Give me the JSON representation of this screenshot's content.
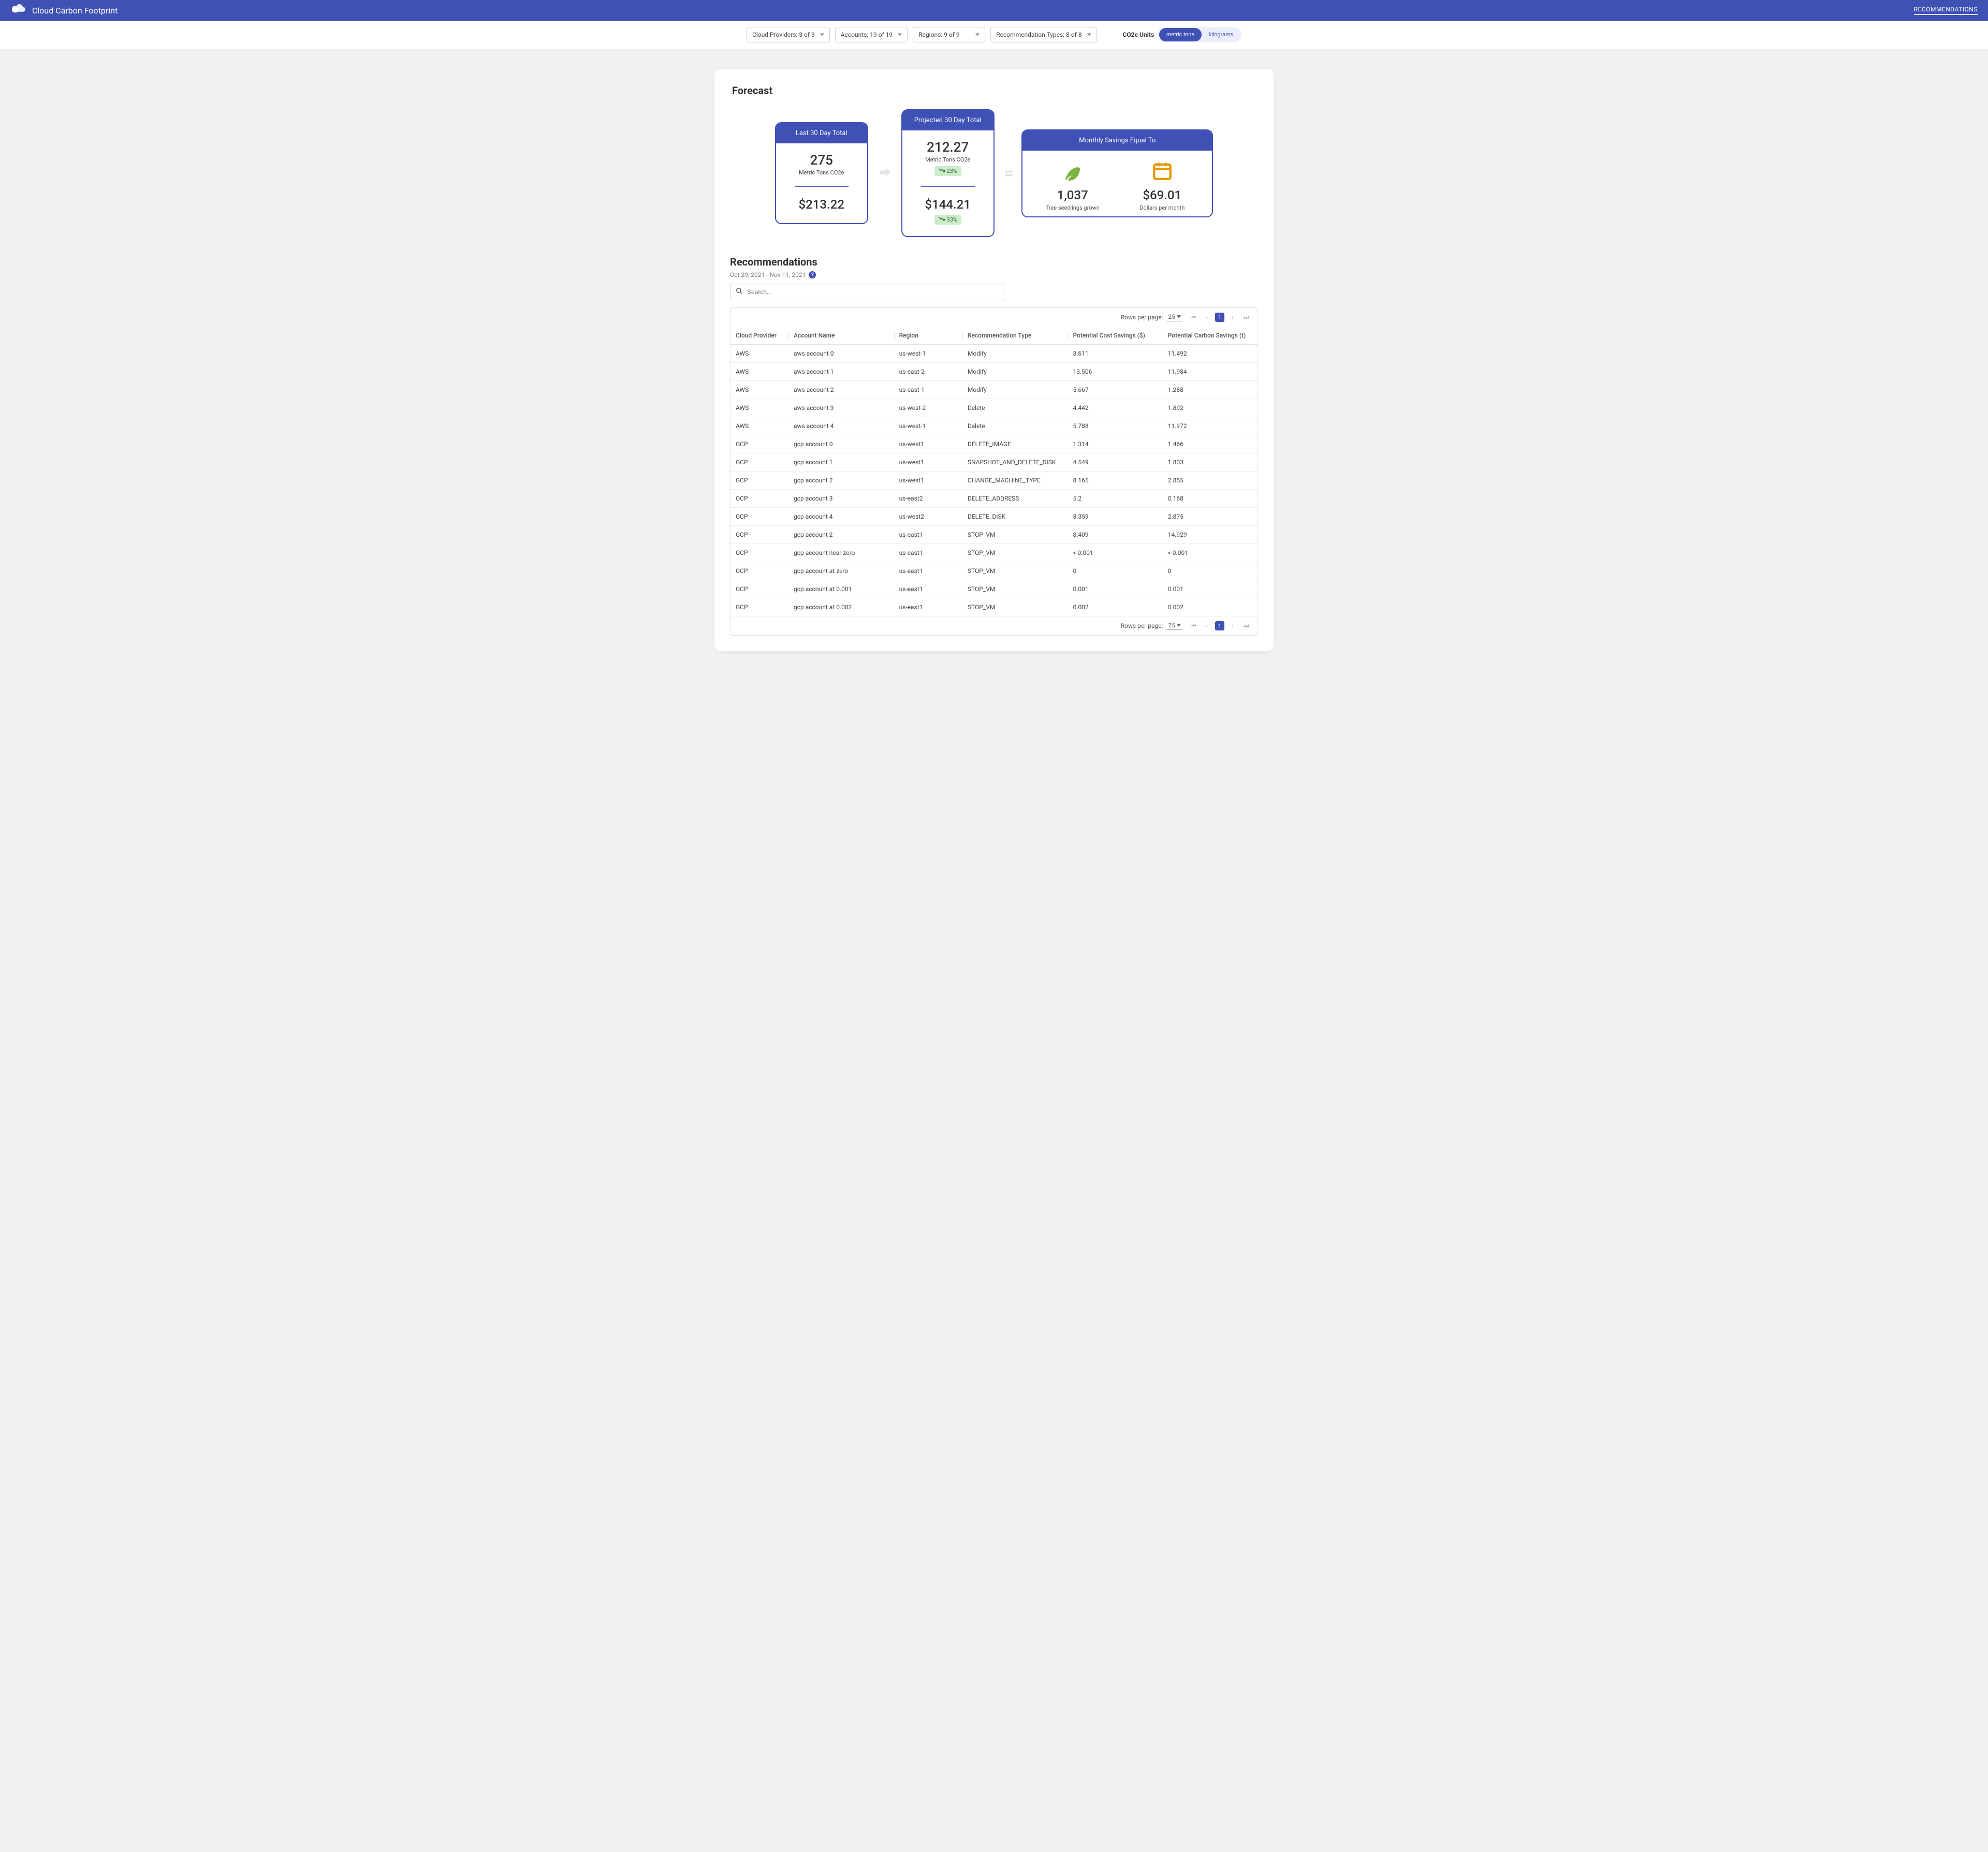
{
  "colors": {
    "primary": "#3f51b5",
    "badge_bg": "#cdebcd",
    "badge_fg": "#2e6b2e",
    "leaf": "#7cb342",
    "calendar": "#e69a00",
    "page_bg": "#f1f1f1"
  },
  "header": {
    "title": "Cloud Carbon Footprint",
    "nav_link": "RECOMMENDATIONS"
  },
  "filters": {
    "cloud_providers": "Cloud Providers: 3 of 3",
    "accounts": "Accounts: 19 of 19",
    "regions": "Regions: 9 of 9",
    "rec_types": "Recommendation Types: 8 of 8",
    "units_label": "CO2e Units",
    "unit_options": [
      "metric tons",
      "kilograms"
    ],
    "unit_selected": "metric tons"
  },
  "forecast": {
    "section_title": "Forecast",
    "last": {
      "title": "Last 30 Day Total",
      "value": "275",
      "unit": "Metric Tons CO2e",
      "cost": "$213.22"
    },
    "projected": {
      "title": "Projected 30 Day Total",
      "value": "212.27",
      "unit": "Metric Tons CO2e",
      "value_badge": "23%",
      "cost": "$144.21",
      "cost_badge": "33%"
    },
    "savings": {
      "title": "Monthly Savings Equal To",
      "trees_value": "1,037",
      "trees_label": "Tree seedlings grown",
      "dollars_value": "$69.01",
      "dollars_label": "Dollars per month"
    }
  },
  "recommendations": {
    "title": "Recommendations",
    "date_range": "Oct 29, 2021 - Nov 11, 2021",
    "search_placeholder": "Search...",
    "pager": {
      "rows_per_page_label": "Rows per page:",
      "rows_per_page_value": "25",
      "current_page": "1"
    },
    "columns": [
      "Cloud Provider",
      "Account Name",
      "Region",
      "Recommendation Type",
      "Potential Cost Savings ($)",
      "Potential Carbon Savings (t)"
    ],
    "rows": [
      [
        "AWS",
        "aws account 0",
        "us-west-1",
        "Modify",
        "3.611",
        "11.492"
      ],
      [
        "AWS",
        "aws account 1",
        "us-east-2",
        "Modify",
        "13.506",
        "11.984"
      ],
      [
        "AWS",
        "aws account 2",
        "us-east-1",
        "Modify",
        "5.667",
        "1.288"
      ],
      [
        "AWS",
        "aws account 3",
        "us-west-2",
        "Delete",
        "4.442",
        "1.892"
      ],
      [
        "AWS",
        "aws account 4",
        "us-west-1",
        "Delete",
        "5.788",
        "11.972"
      ],
      [
        "GCP",
        "gcp account 0",
        "us-west1",
        "DELETE_IMAGE",
        "1.314",
        "1.466"
      ],
      [
        "GCP",
        "gcp account 1",
        "us-west1",
        "SNAPSHOT_AND_DELETE_DISK",
        "4.549",
        "1.803"
      ],
      [
        "GCP",
        "gcp account 2",
        "us-west1",
        "CHANGE_MACHINE_TYPE",
        "8.165",
        "2.855"
      ],
      [
        "GCP",
        "gcp account 3",
        "us-east2",
        "DELETE_ADDRESS",
        "5.2",
        "0.168"
      ],
      [
        "GCP",
        "gcp account 4",
        "us-west2",
        "DELETE_DISK",
        "8.359",
        "2.875"
      ],
      [
        "GCP",
        "gcp account 2",
        "us-east1",
        "STOP_VM",
        "8.409",
        "14.929"
      ],
      [
        "GCP",
        "gcp account near zero",
        "us-east1",
        "STOP_VM",
        "< 0.001",
        "< 0.001"
      ],
      [
        "GCP",
        "gcp account at zero",
        "us-east1",
        "STOP_VM",
        "0",
        "0"
      ],
      [
        "GCP",
        "gcp account at 0.001",
        "us-east1",
        "STOP_VM",
        "0.001",
        "0.001"
      ],
      [
        "GCP",
        "gcp account at 0.002",
        "us-east1",
        "STOP_VM",
        "0.002",
        "0.002"
      ]
    ]
  }
}
